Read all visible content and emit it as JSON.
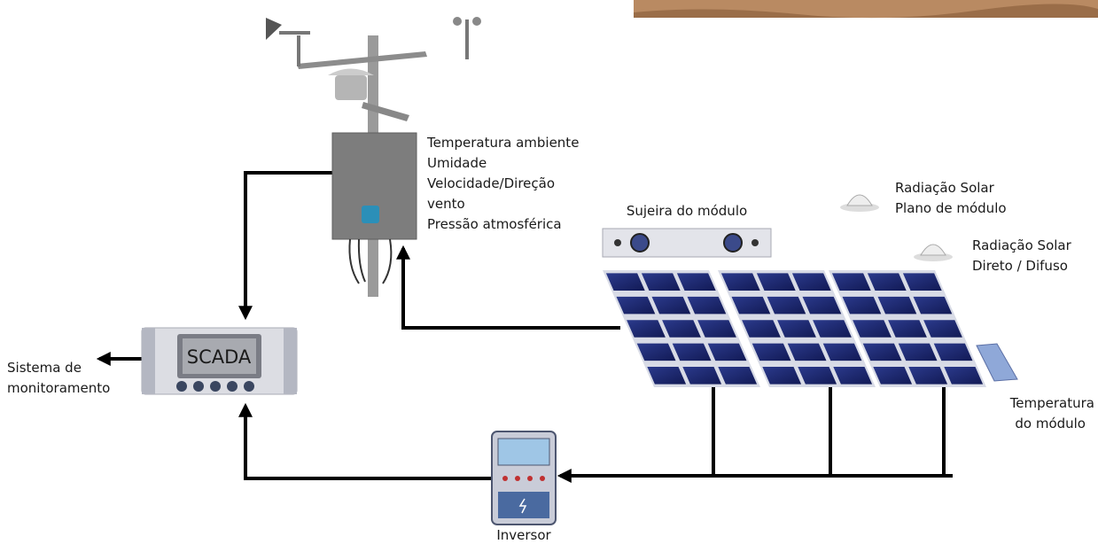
{
  "station_labels": [
    "Temperatura ambiente",
    "Umidade",
    "Velocidade/Direção",
    "vento",
    "Pressão atmosférica"
  ],
  "soiling_label": "Sujeira do módulo",
  "radiation_plane": [
    "Radiação Solar",
    "Plano de módulo"
  ],
  "radiation_direct": [
    "Radiação Solar",
    "Direto / Difuso"
  ],
  "scada": "SCADA",
  "monitoring": [
    "Sistema de",
    "monitoramento"
  ],
  "module_temperature": [
    "Temperatura",
    "do módulo"
  ],
  "inverter": "Inversor"
}
